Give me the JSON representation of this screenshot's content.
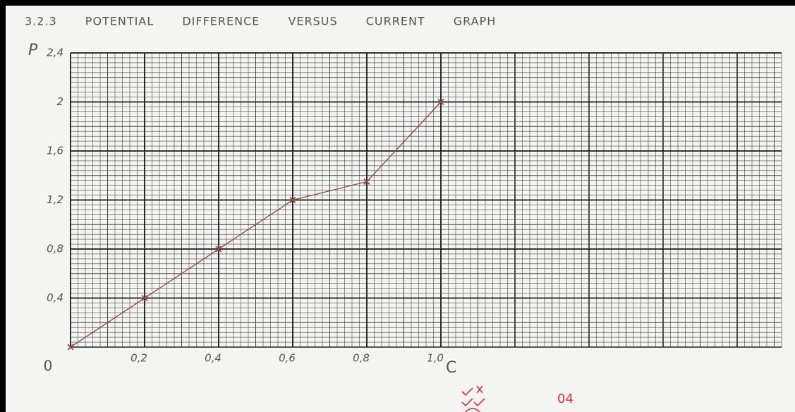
{
  "chart_data": {
    "type": "line",
    "title": "3.2.3 POTENTIAL DIFFERENCE VERSUS CURRENT GRAPH",
    "y_label": "P",
    "x_label": "C",
    "x": [
      0,
      0.2,
      0.4,
      0.6,
      0.8,
      1.0
    ],
    "values": [
      0,
      0.4,
      0.8,
      1.2,
      1.35,
      2.0
    ],
    "color": "#8a5548",
    "xlim": [
      0,
      1.92
    ],
    "ylim": [
      0,
      2.4
    ],
    "xticks": [
      0,
      {
        "value": 0.2,
        "label": "0,2"
      },
      {
        "value": 0.4,
        "label": "0,4"
      },
      {
        "value": 0.6,
        "label": "0,6"
      },
      {
        "value": 0.8,
        "label": "0,8"
      },
      {
        "value": 1.0,
        "label": "1,0"
      }
    ],
    "yticks": [
      {
        "value": 0.4,
        "label": "0,4"
      },
      {
        "value": 0.8,
        "label": "0,8"
      },
      {
        "value": 1.2,
        "label": "1,2"
      },
      {
        "value": 1.6,
        "label": "1,6"
      },
      2,
      {
        "value": 2.4,
        "label": "2,4"
      }
    ],
    "grid": true,
    "annotations": [
      "04"
    ]
  }
}
